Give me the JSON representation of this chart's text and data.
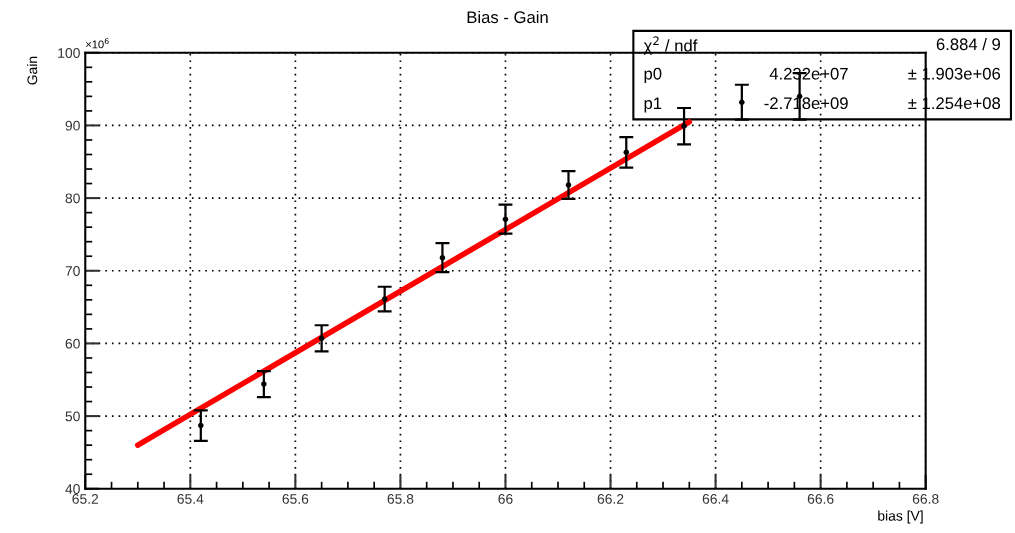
{
  "chart_data": {
    "type": "scatter",
    "title": "Bias - Gain",
    "xlabel": "bias [V]",
    "ylabel": "Gain",
    "annotations": [
      "×10$^{6}$",
      "χ$^{2}$ / ndf",
      "6.884 / 9",
      "p0",
      "4.232e+07",
      "± 1.903e+06",
      "p1",
      "-2.718e+09",
      "± 1.254e+08"
    ],
    "xlim": [
      65.2,
      66.8
    ],
    "xticks": [
      65.2,
      65.4,
      65.6,
      65.8,
      66,
      66.2,
      66.4,
      66.6,
      66.8
    ],
    "ylim": [
      40,
      100
    ],
    "yticks": [
      40,
      50,
      60,
      70,
      80,
      90,
      100
    ],
    "grid": true,
    "series": [
      {
        "color": "#000000",
        "marker": "circle",
        "x": [
          65.42,
          65.54,
          65.65,
          65.77,
          65.88,
          66.0,
          66.12,
          66.23,
          66.34,
          66.45,
          66.56
        ],
        "values": [
          48.7,
          54.4,
          60.7,
          66.1,
          71.8,
          77.1,
          81.8,
          86.3,
          89.9,
          93.2,
          94.0
        ],
        "errors": [
          2.1,
          1.8,
          1.8,
          1.7,
          2.0,
          2.0,
          1.9,
          2.1,
          2.5,
          2.4,
          3.2
        ]
      },
      {
        "type": "line",
        "color": "#ff0000",
        "line_style": "solid",
        "x": [
          65.3,
          66.35
        ],
        "values": [
          46.0,
          90.5
        ]
      }
    ]
  }
}
